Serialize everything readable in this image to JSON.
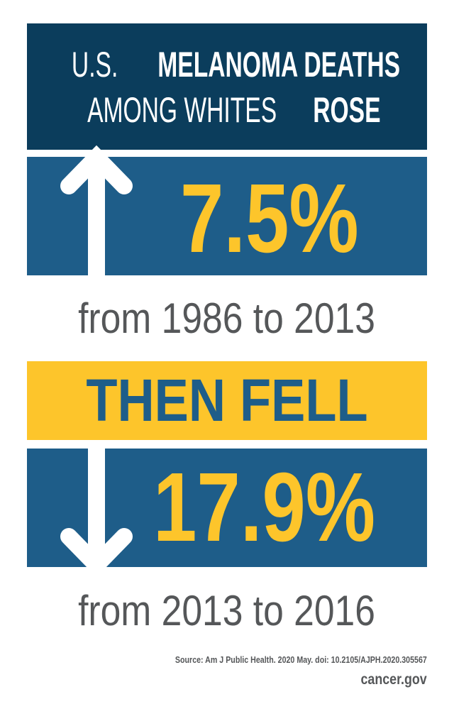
{
  "header": {
    "line1_light": "U.S.",
    "line1_bold": "MELANOMA DEATHS",
    "line2_light": "AMONG WHITES",
    "line2_bold": "ROSE"
  },
  "rise": {
    "icon": "arrow-up-icon",
    "value": "7.5%",
    "period": "from 1986 to 2013"
  },
  "transition": {
    "label": "THEN FELL"
  },
  "fall": {
    "icon": "arrow-down-icon",
    "value": "17.9%",
    "period": "from 2013 to 2016"
  },
  "footer": {
    "source": "Source: Am J Public Health. 2020 May. doi: 10.2105/AJPH.2020.305567",
    "site": "cancer.gov"
  },
  "colors": {
    "dark_navy": "#0b3d5c",
    "blue": "#1e5d89",
    "yellow": "#fdc52b",
    "gray_text": "#555759"
  }
}
